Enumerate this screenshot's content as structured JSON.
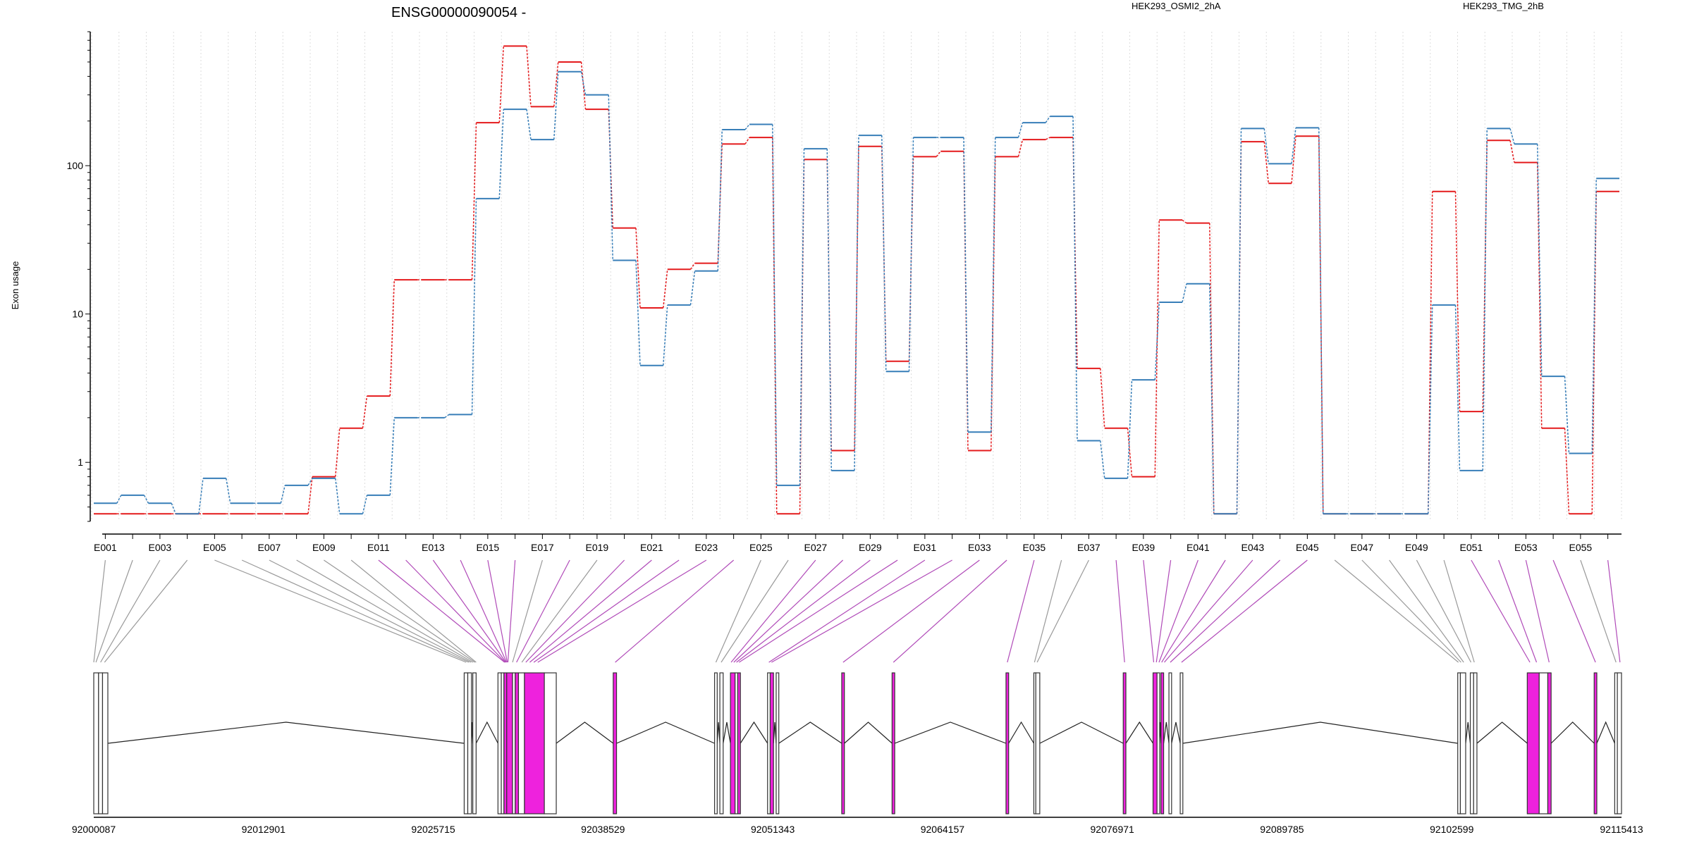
{
  "chart_data": {
    "type": "line",
    "title": "ENSG00000090054 -",
    "ylabel": "Exon usage",
    "xlabel": "",
    "yscale": "log",
    "ylim": [
      0.4,
      800
    ],
    "grid": "vertical dotted lines at each exon",
    "legend_placement": "top",
    "yticks": [
      1,
      10,
      100
    ],
    "ytick_labels": [
      "1",
      "10",
      "100"
    ],
    "exons": [
      "E001",
      "E002",
      "E003",
      "E004",
      "E005",
      "E006",
      "E007",
      "E008",
      "E009",
      "E010",
      "E011",
      "E012",
      "E013",
      "E014",
      "E015",
      "E016",
      "E017",
      "E018",
      "E019",
      "E020",
      "E021",
      "E022",
      "E023",
      "E024",
      "E025",
      "E026",
      "E027",
      "E028",
      "E029",
      "E030",
      "E031",
      "E032",
      "E033",
      "E034",
      "E035",
      "E036",
      "E037",
      "E038",
      "E039",
      "E040",
      "E041",
      "E042",
      "E043",
      "E044",
      "E045",
      "E046",
      "E047",
      "E048",
      "E049",
      "E050",
      "E051",
      "E052",
      "E053",
      "E054",
      "E055",
      "E056"
    ],
    "exon_tick_labels": [
      "E001",
      "E003",
      "E005",
      "E007",
      "E009",
      "E011",
      "E013",
      "E015",
      "E017",
      "E019",
      "E021",
      "E023",
      "E025",
      "E027",
      "E029",
      "E031",
      "E033",
      "E035",
      "E037",
      "E039",
      "E041",
      "E043",
      "E045",
      "E047",
      "E049",
      "E051",
      "E053",
      "E055"
    ],
    "series": [
      {
        "name": "HEK293_OSMI2_2hA",
        "color": "#e41a1c",
        "values": [
          0.45,
          0.45,
          0.45,
          0.45,
          0.45,
          0.45,
          0.45,
          0.45,
          0.8,
          1.7,
          2.8,
          17,
          17,
          17,
          195,
          640,
          250,
          500,
          240,
          38,
          11,
          20,
          22,
          140,
          155,
          0.45,
          110,
          1.2,
          135,
          4.8,
          115,
          125,
          1.2,
          115,
          150,
          155,
          4.3,
          1.7,
          0.8,
          43,
          41,
          0.45,
          145,
          76,
          158,
          0.45,
          0.45,
          0.45,
          0.45,
          67,
          2.2,
          148,
          105,
          1.7,
          0.45,
          67
        ]
      },
      {
        "name": "HEK293_TMG_2hB",
        "color": "#377eb8",
        "values": [
          0.53,
          0.6,
          0.53,
          0.45,
          0.78,
          0.53,
          0.53,
          0.7,
          0.78,
          0.45,
          0.6,
          2,
          2,
          2.1,
          60,
          240,
          150,
          430,
          300,
          23,
          4.5,
          11.5,
          19.5,
          175,
          190,
          0.7,
          130,
          0.88,
          160,
          4.1,
          155,
          155,
          1.6,
          155,
          195,
          215,
          1.4,
          0.78,
          3.6,
          12,
          16,
          0.45,
          178,
          103,
          180,
          0.45,
          0.45,
          0.45,
          0.45,
          11.5,
          0.88,
          178,
          140,
          3.8,
          1.15,
          82
        ]
      }
    ],
    "genomic_axis": {
      "start": 92000087,
      "end": 92115413,
      "tick_labels": [
        "92000087",
        "92012901",
        "92025715",
        "92038529",
        "92051343",
        "92064157",
        "92076971",
        "92089785",
        "92102599",
        "92115413"
      ]
    },
    "gene_model_exons": [
      {
        "id": "E001",
        "start": 92000087,
        "end": 92000450,
        "highlight": false
      },
      {
        "id": "E002",
        "start": 92000450,
        "end": 92000750,
        "highlight": false
      },
      {
        "id": "E003",
        "start": 92000750,
        "end": 92001150,
        "highlight": false
      },
      {
        "id": "E004",
        "start": 92028050,
        "end": 92028320,
        "highlight": false
      },
      {
        "id": "E005",
        "start": 92028320,
        "end": 92028600,
        "highlight": false
      },
      {
        "id": "E006",
        "start": 92028700,
        "end": 92028950,
        "highlight": false
      },
      {
        "id": "E007",
        "start": 92030600,
        "end": 92030850,
        "highlight": false
      },
      {
        "id": "E008",
        "start": 92030850,
        "end": 92031050,
        "highlight": false
      },
      {
        "id": "E009",
        "start": 92031050,
        "end": 92031260,
        "highlight": true
      },
      {
        "id": "E010",
        "start": 92031260,
        "end": 92031700,
        "highlight": true
      },
      {
        "id": "E011",
        "start": 92031700,
        "end": 92031900,
        "highlight": false
      },
      {
        "id": "E012",
        "start": 92031900,
        "end": 92032150,
        "highlight": true
      },
      {
        "id": "E013",
        "start": 92032150,
        "end": 92032600,
        "highlight": false
      },
      {
        "id": "E014",
        "start": 92032600,
        "end": 92034100,
        "highlight": true
      },
      {
        "id": "E015",
        "start": 92034100,
        "end": 92035000,
        "highlight": false
      },
      {
        "id": "E016",
        "start": 92039300,
        "end": 92039550,
        "highlight": true
      },
      {
        "id": "E017",
        "start": 92046950,
        "end": 92047150,
        "highlight": false
      },
      {
        "id": "E018",
        "start": 92047350,
        "end": 92047600,
        "highlight": false
      },
      {
        "id": "E019",
        "start": 92048150,
        "end": 92048500,
        "highlight": true
      },
      {
        "id": "E020",
        "start": 92048500,
        "end": 92048700,
        "highlight": false
      },
      {
        "id": "E021",
        "start": 92048700,
        "end": 92048900,
        "highlight": true
      },
      {
        "id": "E022",
        "start": 92050950,
        "end": 92051150,
        "highlight": false
      },
      {
        "id": "E023",
        "start": 92051150,
        "end": 92051400,
        "highlight": true
      },
      {
        "id": "E024",
        "start": 92051600,
        "end": 92051800,
        "highlight": false
      },
      {
        "id": "E025",
        "start": 92056550,
        "end": 92056750,
        "highlight": true
      },
      {
        "id": "E026",
        "start": 92060350,
        "end": 92060550,
        "highlight": true
      },
      {
        "id": "E027",
        "start": 92068950,
        "end": 92069150,
        "highlight": true
      },
      {
        "id": "E028",
        "start": 92071050,
        "end": 92071200,
        "highlight": false
      },
      {
        "id": "E029",
        "start": 92071200,
        "end": 92071500,
        "highlight": false
      },
      {
        "id": "E030",
        "start": 92077800,
        "end": 92078000,
        "highlight": true
      },
      {
        "id": "E031",
        "start": 92080050,
        "end": 92080350,
        "highlight": true
      },
      {
        "id": "E032",
        "start": 92080350,
        "end": 92080550,
        "highlight": false
      },
      {
        "id": "E033",
        "start": 92080650,
        "end": 92080850,
        "highlight": true
      },
      {
        "id": "E034",
        "start": 92081250,
        "end": 92081450,
        "highlight": false
      },
      {
        "id": "E035",
        "start": 92082100,
        "end": 92082300,
        "highlight": false
      },
      {
        "id": "E036",
        "start": 92103050,
        "end": 92103250,
        "highlight": false
      },
      {
        "id": "E037",
        "start": 92103250,
        "end": 92103650,
        "highlight": false
      },
      {
        "id": "E038",
        "start": 92104000,
        "end": 92104250,
        "highlight": false
      },
      {
        "id": "E039",
        "start": 92104250,
        "end": 92104500,
        "highlight": false
      },
      {
        "id": "E040",
        "start": 92108300,
        "end": 92109200,
        "highlight": true
      },
      {
        "id": "E041",
        "start": 92109200,
        "end": 92109850,
        "highlight": false
      },
      {
        "id": "E042",
        "start": 92109850,
        "end": 92110100,
        "highlight": true
      },
      {
        "id": "E043",
        "start": 92113350,
        "end": 92113550,
        "highlight": true
      },
      {
        "id": "E044",
        "start": 92114900,
        "end": 92115100,
        "highlight": false
      },
      {
        "id": "E045",
        "start": 92115100,
        "end": 92115413,
        "highlight": false
      }
    ],
    "connectors": [
      {
        "exon": 0,
        "gstart": 92000087,
        "highlight": false
      },
      {
        "exon": 1,
        "gstart": 92000250,
        "highlight": false
      },
      {
        "exon": 2,
        "gstart": 92000600,
        "highlight": false
      },
      {
        "exon": 3,
        "gstart": 92000900,
        "highlight": false
      },
      {
        "exon": 4,
        "gstart": 92028200,
        "highlight": false
      },
      {
        "exon": 5,
        "gstart": 92028400,
        "highlight": false
      },
      {
        "exon": 6,
        "gstart": 92028550,
        "highlight": false
      },
      {
        "exon": 7,
        "gstart": 92028700,
        "highlight": false
      },
      {
        "exon": 8,
        "gstart": 92028850,
        "highlight": false
      },
      {
        "exon": 9,
        "gstart": 92028950,
        "highlight": false
      },
      {
        "exon": 10,
        "gstart": 92031100,
        "highlight": true
      },
      {
        "exon": 11,
        "gstart": 92031150,
        "highlight": true
      },
      {
        "exon": 12,
        "gstart": 92031200,
        "highlight": true
      },
      {
        "exon": 13,
        "gstart": 92031250,
        "highlight": true
      },
      {
        "exon": 14,
        "gstart": 92031300,
        "highlight": true
      },
      {
        "exon": 15,
        "gstart": 92031350,
        "highlight": true
      },
      {
        "exon": 16,
        "gstart": 92031700,
        "highlight": false
      },
      {
        "exon": 17,
        "gstart": 92032000,
        "highlight": true
      },
      {
        "exon": 18,
        "gstart": 92032400,
        "highlight": false
      },
      {
        "exon": 19,
        "gstart": 92032700,
        "highlight": true
      },
      {
        "exon": 20,
        "gstart": 92033000,
        "highlight": true
      },
      {
        "exon": 21,
        "gstart": 92033300,
        "highlight": true
      },
      {
        "exon": 22,
        "gstart": 92033600,
        "highlight": true
      },
      {
        "exon": 23,
        "gstart": 92039450,
        "highlight": true
      },
      {
        "exon": 24,
        "gstart": 92047050,
        "highlight": false
      },
      {
        "exon": 25,
        "gstart": 92047450,
        "highlight": false
      },
      {
        "exon": 26,
        "gstart": 92048200,
        "highlight": true
      },
      {
        "exon": 27,
        "gstart": 92048400,
        "highlight": true
      },
      {
        "exon": 28,
        "gstart": 92048600,
        "highlight": true
      },
      {
        "exon": 29,
        "gstart": 92048800,
        "highlight": true
      },
      {
        "exon": 30,
        "gstart": 92051050,
        "highlight": true
      },
      {
        "exon": 31,
        "gstart": 92051250,
        "highlight": true
      },
      {
        "exon": 32,
        "gstart": 92056650,
        "highlight": true
      },
      {
        "exon": 33,
        "gstart": 92060450,
        "highlight": true
      },
      {
        "exon": 34,
        "gstart": 92069050,
        "highlight": true
      },
      {
        "exon": 35,
        "gstart": 92071100,
        "highlight": false
      },
      {
        "exon": 36,
        "gstart": 92071300,
        "highlight": false
      },
      {
        "exon": 37,
        "gstart": 92077900,
        "highlight": true
      },
      {
        "exon": 38,
        "gstart": 92080100,
        "highlight": true
      },
      {
        "exon": 39,
        "gstart": 92080300,
        "highlight": true
      },
      {
        "exon": 40,
        "gstart": 92080500,
        "highlight": true
      },
      {
        "exon": 41,
        "gstart": 92080700,
        "highlight": true
      },
      {
        "exon": 42,
        "gstart": 92080900,
        "highlight": true
      },
      {
        "exon": 43,
        "gstart": 92081350,
        "highlight": true
      },
      {
        "exon": 44,
        "gstart": 92082200,
        "highlight": true
      },
      {
        "exon": 45,
        "gstart": 92103100,
        "highlight": false
      },
      {
        "exon": 46,
        "gstart": 92103300,
        "highlight": false
      },
      {
        "exon": 47,
        "gstart": 92103500,
        "highlight": false
      },
      {
        "exon": 48,
        "gstart": 92104050,
        "highlight": false
      },
      {
        "exon": 49,
        "gstart": 92104300,
        "highlight": false
      },
      {
        "exon": 50,
        "gstart": 92108500,
        "highlight": true
      },
      {
        "exon": 51,
        "gstart": 92109000,
        "highlight": true
      },
      {
        "exon": 52,
        "gstart": 92109950,
        "highlight": true
      },
      {
        "exon": 53,
        "gstart": 92113450,
        "highlight": true
      },
      {
        "exon": 54,
        "gstart": 92115000,
        "highlight": false
      },
      {
        "exon": 55,
        "gstart": 92115300,
        "highlight": true
      }
    ]
  },
  "colors": {
    "osmi": "#e41a1c",
    "tmg": "#377eb8",
    "highlight": "#ee22dd",
    "highlight_line": "#b04ab8",
    "plain_fill": "#cfc9cd",
    "connector_plain": "#999999",
    "axis": "#000000"
  }
}
